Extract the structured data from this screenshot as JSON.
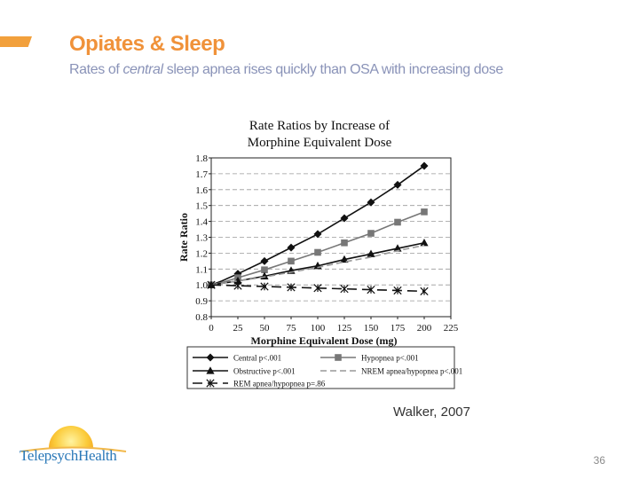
{
  "slide": {
    "title": "Opiates & Sleep",
    "subtitle_pre": "Rates of ",
    "subtitle_em": "central",
    "subtitle_post": " sleep apnea rises quickly than OSA with increasing dose",
    "citation": "Walker, 2007",
    "page_number": "36",
    "logo_text": "TelepsychHealth",
    "accent_color": "#f0923a",
    "subtitle_color": "#8a93b8"
  },
  "chart_data": {
    "type": "line",
    "title_lines": [
      "Rate Ratios by Increase of",
      "Morphine Equivalent Dose"
    ],
    "xlabel": "Morphine Equivalent Dose (mg)",
    "ylabel": "Rate Ratio",
    "x": [
      0,
      10,
      25,
      50,
      75,
      100,
      125,
      150,
      175,
      200
    ],
    "xticks": [
      0,
      25,
      50,
      75,
      100,
      125,
      150,
      175,
      200,
      225
    ],
    "yticks": [
      0.8,
      0.9,
      1.0,
      1.1,
      1.2,
      1.3,
      1.4,
      1.5,
      1.6,
      1.7,
      1.8
    ],
    "xlim": [
      0,
      225
    ],
    "ylim": [
      0.8,
      1.8
    ],
    "grid": "horizontal dashed",
    "legend_position": "below",
    "series": [
      {
        "name": "Central p<.001",
        "marker": "diamond",
        "dash": "solid",
        "color": "#111111",
        "values": [
          1.0,
          1.025,
          1.07,
          1.15,
          1.235,
          1.32,
          1.42,
          1.52,
          1.63,
          1.75
        ]
      },
      {
        "name": "Hypopnea p<.001",
        "marker": "square",
        "dash": "solid",
        "color": "#777777",
        "values": [
          1.0,
          1.015,
          1.045,
          1.095,
          1.15,
          1.205,
          1.265,
          1.325,
          1.395,
          1.46
        ]
      },
      {
        "name": "Obstructive p<.001",
        "marker": "triangle",
        "dash": "solid",
        "color": "#111111",
        "values": [
          1.0,
          1.01,
          1.025,
          1.055,
          1.09,
          1.12,
          1.16,
          1.195,
          1.23,
          1.265
        ]
      },
      {
        "name": "NREM apnea/hypopnea p<.001",
        "marker": "none",
        "dash": "dashed",
        "color": "#999999",
        "values": [
          1.0,
          1.01,
          1.025,
          1.05,
          1.08,
          1.11,
          1.145,
          1.175,
          1.215,
          1.25
        ]
      },
      {
        "name": "REM apnea/hypopnea p=.86",
        "marker": "asterisk",
        "dash": "longdash",
        "color": "#111111",
        "values": [
          1.0,
          0.998,
          0.995,
          0.99,
          0.985,
          0.98,
          0.975,
          0.97,
          0.965,
          0.96
        ]
      }
    ]
  }
}
